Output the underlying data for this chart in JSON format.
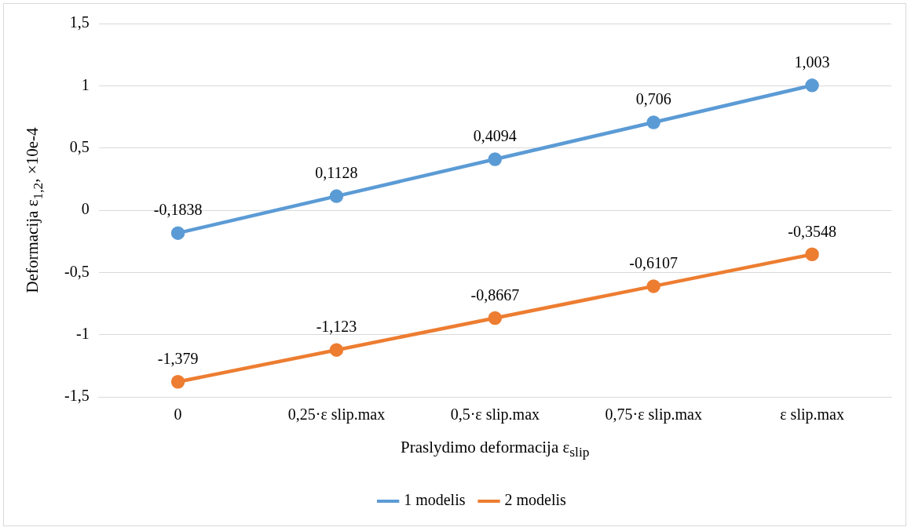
{
  "chart_data": {
    "type": "line",
    "xlabel": "Praslydimo deformacija ε$_{slip}$",
    "ylabel": "Deformacija ε$_{1,2}$, ×10e-4",
    "categories": [
      "0",
      "0,25·ε slip.max",
      "0,5·ε slip.max",
      "0,75·ε slip.max",
      "ε slip.max"
    ],
    "series": [
      {
        "name": "1 modelis",
        "color": "#5b9bd5",
        "values": [
          -0.1838,
          0.1128,
          0.4094,
          0.706,
          1.003
        ],
        "value_labels": [
          "-0,1838",
          "0,1128",
          "0,4094",
          "0,706",
          "1,003"
        ]
      },
      {
        "name": "2 modelis",
        "color": "#ed7d31",
        "values": [
          -1.379,
          -1.123,
          -0.8667,
          -0.6107,
          -0.3548
        ],
        "value_labels": [
          "-1,379",
          "-1,123",
          "-0,8667",
          "-0,6107",
          "-0,3548"
        ]
      }
    ],
    "ylim": [
      -1.5,
      1.5
    ],
    "yticks": [
      {
        "value": -1.5,
        "label": "-1,5"
      },
      {
        "value": -1,
        "label": "-1"
      },
      {
        "value": -0.5,
        "label": "-0,5"
      },
      {
        "value": 0,
        "label": "0"
      },
      {
        "value": 0.5,
        "label": "0,5"
      },
      {
        "value": 1,
        "label": "1"
      },
      {
        "value": 1.5,
        "label": "1,5"
      }
    ],
    "grid": "y",
    "legend": "bottom",
    "marker": "circle",
    "line_style": "solid"
  }
}
